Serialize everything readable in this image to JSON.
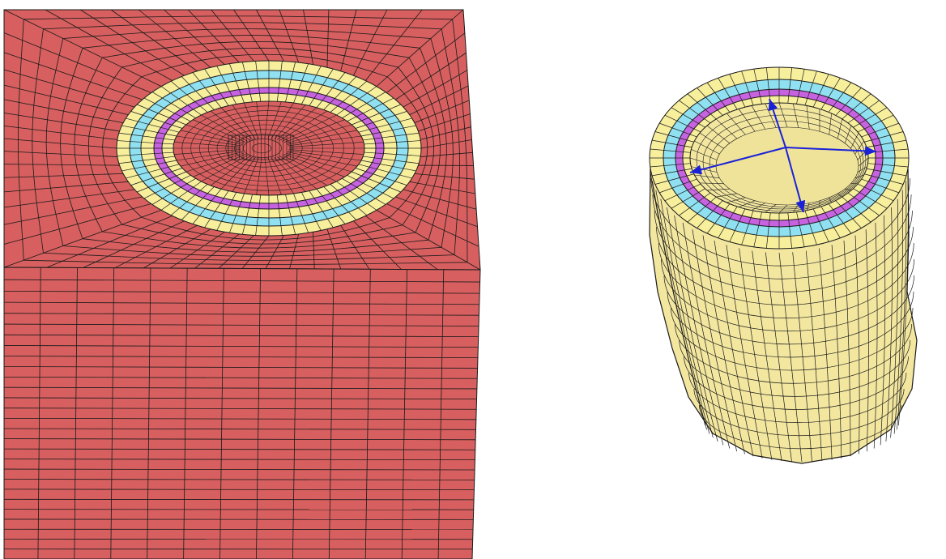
{
  "colors": {
    "background": "#ffffff",
    "block_face": "#d75f5f",
    "mesh_line": "#1a1a1a",
    "yellow_layer": "#f7ef9c",
    "cyan_layer": "#8fe0f0",
    "purple_layer": "#c763e0",
    "tube_body": "#f3e7a0",
    "arrow": "#1a22d8"
  },
  "panels": [
    {
      "id": "block-with-embedded-ring",
      "rings": [
        "yellow",
        "cyan",
        "yellow",
        "purple",
        "yellow"
      ]
    },
    {
      "id": "isolated-tube-model",
      "rings": [
        "yellow",
        "cyan",
        "purple",
        "yellow"
      ]
    }
  ],
  "arrows": [
    {
      "direction": "up"
    },
    {
      "direction": "down"
    },
    {
      "direction": "left"
    },
    {
      "direction": "right"
    }
  ]
}
